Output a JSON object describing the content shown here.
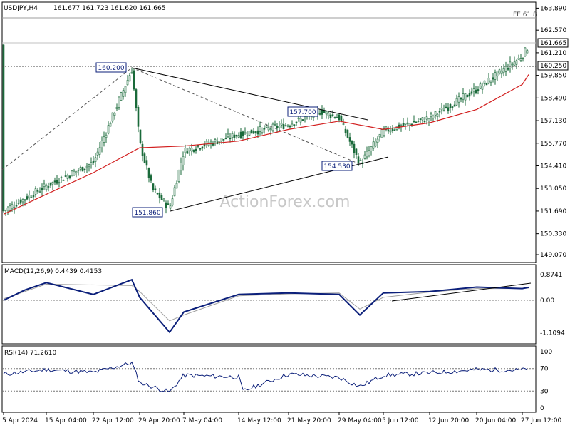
{
  "header": {
    "symbol": "USDJPY,H4",
    "ohlc": "161.677 161.723 161.620 161.665"
  },
  "watermark": "ActionForex.com",
  "colors": {
    "candle": "#1a6a3a",
    "ema": "#d21f1f",
    "macd": "#0b1f7a",
    "signal": "#a0a0a0",
    "box_border": "#0b1f7a",
    "grid": "#9c9c9c"
  },
  "chart_data": [
    {
      "type": "line",
      "name": "USDJPY H4 price",
      "series": [
        {
          "name": "Price",
          "x": [
            "5 Apr 2024",
            "15 Apr 04:00",
            "22 Apr 12:00",
            "26 Apr",
            "29 Apr 20:00",
            "1 May",
            "3 May",
            "7 May 04:00",
            "14 May 12:00",
            "21 May 20:00",
            "23 May",
            "29 May 04:00",
            "3 Jun",
            "5 Jun 12:00",
            "12 Jun 20:00",
            "20 Jun 04:00",
            "27 Jun 12:00",
            "28 Jun"
          ],
          "values": [
            151.7,
            153.2,
            154.6,
            160.2,
            155.8,
            153.0,
            151.86,
            155.3,
            156.3,
            156.9,
            157.7,
            157.3,
            154.53,
            156.5,
            157.3,
            159.0,
            161.0,
            161.665
          ]
        },
        {
          "name": "EMA",
          "x": [
            "5 Apr 2024",
            "15 Apr 04:00",
            "22 Apr 12:00",
            "29 Apr 20:00",
            "7 May 04:00",
            "14 May 12:00",
            "21 May 20:00",
            "29 May 04:00",
            "5 Jun 12:00",
            "12 Jun 20:00",
            "20 Jun 04:00",
            "27 Jun 12:00",
            "28 Jun"
          ],
          "values": [
            151.5,
            152.7,
            154.0,
            155.5,
            155.6,
            155.9,
            156.6,
            157.1,
            156.6,
            157.0,
            157.8,
            159.3,
            159.9
          ]
        }
      ],
      "yticks": [
        "149.070",
        "150.330",
        "151.690",
        "153.050",
        "154.410",
        "155.770",
        "157.130",
        "158.490",
        "159.850",
        "161.210",
        "162.570",
        "163.890"
      ],
      "ylim": [
        148.6,
        164.25
      ],
      "price_tags": [
        "161.665",
        "160.250"
      ],
      "annotations": [
        "160.200",
        "157.700",
        "154.530",
        "151.860",
        "FE 61.8"
      ]
    },
    {
      "type": "line",
      "label": "MACD(12,26,9) 0.4439 0.4153",
      "series": [
        {
          "name": "MACD",
          "x": [
            "5 Apr 2024",
            "10 Apr",
            "15 Apr 04:00",
            "22 Apr 12:00",
            "26 Apr",
            "29 Apr 20:00",
            "3 May",
            "7 May 04:00",
            "14 May 12:00",
            "21 May 20:00",
            "29 May 04:00",
            "3 Jun",
            "5 Jun 12:00",
            "12 Jun 20:00",
            "20 Jun 04:00",
            "27 Jun 12:00",
            "28 Jun"
          ],
          "values": [
            0.0,
            0.35,
            0.6,
            0.2,
            0.7,
            0.1,
            -1.09,
            -0.4,
            0.2,
            0.25,
            0.2,
            -0.5,
            0.25,
            0.3,
            0.45,
            0.4,
            0.44
          ]
        },
        {
          "name": "Signal",
          "x": [
            "5 Apr 2024",
            "15 Apr 04:00",
            "26 Apr",
            "29 Apr 20:00",
            "3 May",
            "7 May 04:00",
            "14 May 12:00",
            "21 May 20:00",
            "29 May 04:00",
            "3 Jun",
            "5 Jun 12:00",
            "12 Jun 20:00",
            "20 Jun 04:00",
            "27 Jun 12:00",
            "28 Jun"
          ],
          "values": [
            0.05,
            0.55,
            0.5,
            0.3,
            -0.7,
            -0.5,
            0.15,
            0.22,
            0.25,
            -0.3,
            0.1,
            0.28,
            0.4,
            0.4,
            0.42
          ]
        }
      ],
      "yticks": [
        "0.8741",
        "0.00",
        "-1.1094"
      ]
    },
    {
      "type": "line",
      "label": "RSI(14) 71.2610",
      "series": [
        {
          "name": "RSI",
          "x": [
            "5 Apr 2024",
            "15 Apr 04:00",
            "22 Apr 12:00",
            "26 Apr",
            "29 Apr 20:00",
            "3 May",
            "7 May 04:00",
            "14 May 12:00",
            "16 May",
            "21 May 20:00",
            "29 May 04:00",
            "3 Jun",
            "5 Jun 12:00",
            "12 Jun 20:00",
            "20 Jun 04:00",
            "27 Jun 12:00",
            "28 Jun"
          ],
          "values": [
            60,
            68,
            63,
            80,
            45,
            28,
            58,
            55,
            30,
            60,
            54,
            38,
            58,
            62,
            68,
            67,
            71.261
          ]
        }
      ],
      "yticks": [
        "100",
        "70",
        "30",
        "0"
      ]
    }
  ],
  "xaxis": [
    "5 Apr 2024",
    "15 Apr 04:00",
    "22 Apr 12:00",
    "29 Apr 20:00",
    "7 May 04:00",
    "14 May 12:00",
    "21 May 20:00",
    "29 May 04:00",
    "5 Jun 12:00",
    "12 Jun 20:00",
    "20 Jun 04:00",
    "27 Jun 12:00"
  ]
}
